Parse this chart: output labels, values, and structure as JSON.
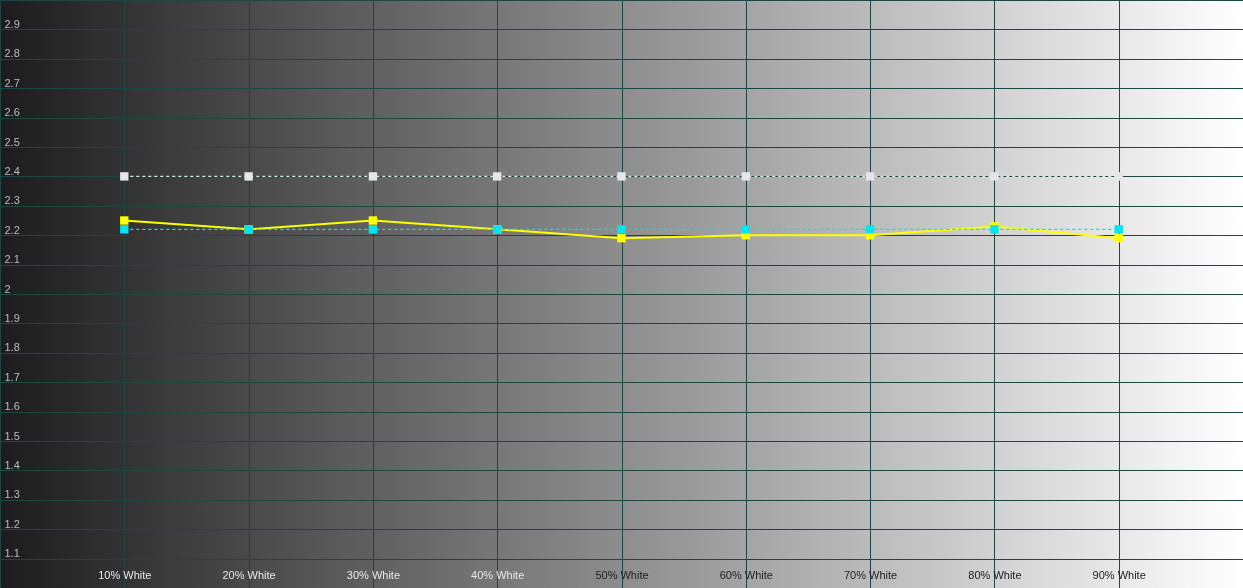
{
  "chart_data": {
    "type": "line",
    "x": [
      10,
      20,
      30,
      40,
      50,
      60,
      70,
      80,
      90
    ],
    "series": [
      {
        "color": "#ffff00",
        "line_style": "solid",
        "values": [
          2.25,
          2.22,
          2.25,
          2.22,
          2.19,
          2.2,
          2.2,
          2.23,
          2.19
        ]
      },
      {
        "color": "#00e5f0",
        "line_style": "dashed",
        "values": [
          2.22,
          2.22,
          2.22,
          2.22,
          2.22,
          2.22,
          2.22,
          2.22,
          2.22
        ]
      },
      {
        "color": "#e6e6e6",
        "line_style": "dashed",
        "values": [
          2.4,
          2.4,
          2.4,
          2.4,
          2.4,
          2.4,
          2.4,
          2.4,
          2.4
        ]
      }
    ],
    "xlim": [
      0,
      100
    ],
    "xticks": [
      {
        "value": 10,
        "label": "10% White"
      },
      {
        "value": 20,
        "label": "20% White"
      },
      {
        "value": 30,
        "label": "30% White"
      },
      {
        "value": 40,
        "label": "40% White"
      },
      {
        "value": 50,
        "label": "50% White"
      },
      {
        "value": 60,
        "label": "60% White"
      },
      {
        "value": 70,
        "label": "70% White"
      },
      {
        "value": 80,
        "label": "80% White"
      },
      {
        "value": 90,
        "label": "90% White"
      }
    ],
    "ylim": [
      1.0,
      3.0
    ],
    "yticks": [
      1.1,
      1.2,
      1.3,
      1.4,
      1.5,
      1.6,
      1.7,
      1.8,
      1.9,
      2,
      2.1,
      2.2,
      2.3,
      2.4,
      2.5,
      2.6,
      2.7,
      2.8,
      2.9
    ],
    "grid": true,
    "marker": "square"
  }
}
